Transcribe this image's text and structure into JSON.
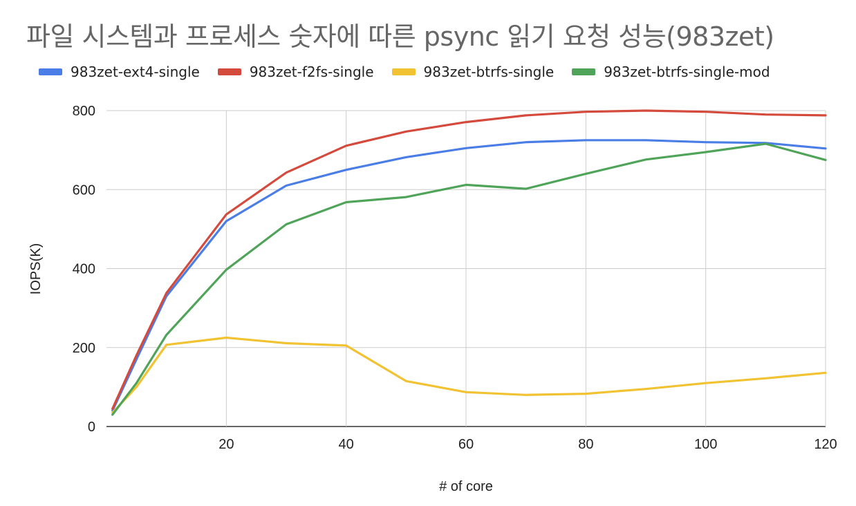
{
  "chart_data": {
    "type": "line",
    "title": "파일 시스템과 프로세스 숫자에 따른 psync 읽기 요청 성능(983zet)",
    "xlabel": "# of core",
    "ylabel": "IOPS(K)",
    "xlim": [
      0,
      120
    ],
    "ylim": [
      0,
      800
    ],
    "x_ticks": [
      20,
      40,
      60,
      80,
      100,
      120
    ],
    "y_ticks": [
      0,
      200,
      400,
      600,
      800
    ],
    "grid": true,
    "legend_position": "top",
    "x": [
      1,
      5,
      10,
      20,
      30,
      40,
      50,
      60,
      70,
      80,
      90,
      100,
      110,
      120
    ],
    "series": [
      {
        "name": "983zet-ext4-single",
        "color": "#4a7ee6",
        "values": [
          40,
          170,
          330,
          520,
          610,
          650,
          682,
          705,
          720,
          725,
          725,
          720,
          718,
          704
        ]
      },
      {
        "name": "983zet-f2fs-single",
        "color": "#d44a3c",
        "values": [
          45,
          180,
          338,
          537,
          643,
          711,
          747,
          771,
          788,
          797,
          800,
          797,
          790,
          788
        ]
      },
      {
        "name": "983zet-btrfs-single",
        "color": "#f1c232",
        "values": [
          35,
          100,
          207,
          225,
          211,
          205,
          115,
          87,
          80,
          83,
          95,
          110,
          122,
          136
        ]
      },
      {
        "name": "983zet-btrfs-single-mod",
        "color": "#4fa45a",
        "values": [
          30,
          110,
          232,
          397,
          512,
          568,
          581,
          612,
          602,
          640,
          676,
          695,
          716,
          675
        ]
      }
    ]
  }
}
